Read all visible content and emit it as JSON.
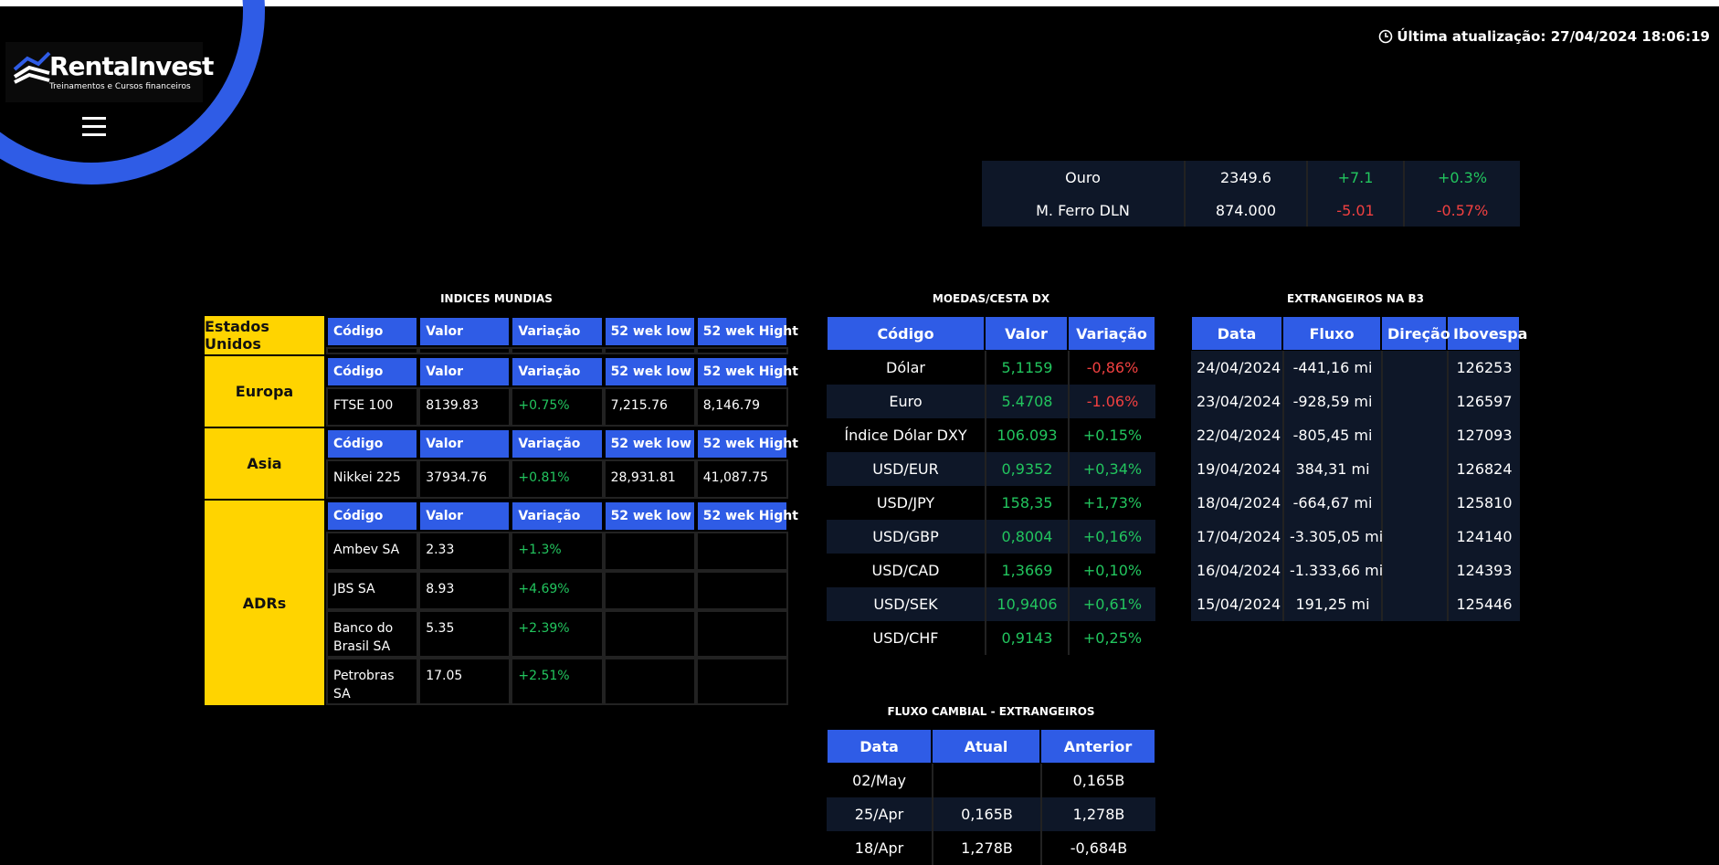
{
  "header": {
    "logo_title": "RentaInvest",
    "logo_subtitle": "Treinamentos e Cursos financeiros",
    "last_update": "Última atualização: 27/04/2024 18:06:19"
  },
  "commodities": {
    "rows": [
      [
        "Ouro",
        "2349.6",
        "+7.1",
        "+0.3%"
      ],
      [
        "M. Ferro DLN",
        "874.000",
        "-5.01",
        "-0.57%"
      ]
    ]
  },
  "indices": {
    "title": "INDICES MUNDIAS",
    "groups": [
      {
        "name": "Estados Unidos",
        "columns": [
          "Código",
          "Valor",
          "Variação",
          "52 wek low",
          "52 wek Hight"
        ],
        "rows": []
      },
      {
        "name": "Europa",
        "columns": [
          "Código",
          "Valor",
          "Variação",
          "52 wek low",
          "52 wek Hight"
        ],
        "rows": [
          [
            "FTSE 100",
            "8139.83",
            "+0.75%",
            "7,215.76",
            "8,146.79"
          ]
        ]
      },
      {
        "name": "Asia",
        "columns": [
          "Código",
          "Valor",
          "Variação",
          "52 wek low",
          "52 wek Hight"
        ],
        "rows": [
          [
            "Nikkei 225",
            "37934.76",
            "+0.81%",
            "28,931.81",
            "41,087.75"
          ]
        ]
      },
      {
        "name": "ADRs",
        "columns": [
          "Código",
          "Valor",
          "Variação",
          "52 wek low",
          "52 wek Hight"
        ],
        "rows": [
          [
            "Ambev SA",
            "2.33",
            "+1.3%",
            null,
            null
          ],
          [
            "JBS SA",
            "8.93",
            "+4.69%",
            null,
            null
          ],
          [
            "Banco do Brasil SA",
            "5.35",
            "+2.39%",
            null,
            null
          ],
          [
            "Petrobras SA",
            "17.05",
            "+2.51%",
            null,
            null
          ]
        ]
      }
    ]
  },
  "moedas": {
    "title": "MOEDAS/CESTA DX",
    "columns": [
      "Código",
      "Valor",
      "Variação"
    ],
    "rows": [
      [
        "Dólar",
        "5,1159",
        "-0,86%"
      ],
      [
        "Euro",
        "5.4708",
        "-1.06%"
      ],
      [
        "Índice Dólar DXY",
        "106.093",
        "+0.15%"
      ],
      [
        "USD/EUR",
        "0,9352",
        "+0,34%"
      ],
      [
        "USD/JPY",
        "158,35",
        "+1,73%"
      ],
      [
        "USD/GBP",
        "0,8004",
        "+0,16%"
      ],
      [
        "USD/CAD",
        "1,3669",
        "+0,10%"
      ],
      [
        "USD/SEK",
        "10,9406",
        "+0,61%"
      ],
      [
        "USD/CHF",
        "0,9143",
        "+0,25%"
      ]
    ]
  },
  "estrangeiros": {
    "title": "EXTRANGEIROS NA B3",
    "columns": [
      "Data",
      "Fluxo",
      "Direção",
      "Ibovespa"
    ],
    "rows": [
      [
        "24/04/2024",
        "-441,16 mi",
        null,
        "126253"
      ],
      [
        "23/04/2024",
        "-928,59 mi",
        null,
        "126597"
      ],
      [
        "22/04/2024",
        "-805,45 mi",
        null,
        "127093"
      ],
      [
        "19/04/2024",
        "384,31 mi",
        null,
        "126824"
      ],
      [
        "18/04/2024",
        "-664,67 mi",
        null,
        "125810"
      ],
      [
        "17/04/2024",
        "-3.305,05 mi",
        null,
        "124140"
      ],
      [
        "16/04/2024",
        "-1.333,66 mi",
        null,
        "124393"
      ],
      [
        "15/04/2024",
        "191,25 mi",
        null,
        "125446"
      ]
    ]
  },
  "fluxo_cambial": {
    "title": "FLUXO CAMBIAL - EXTRANGEIROS",
    "columns": [
      "Data",
      "Atual",
      "Anterior"
    ],
    "rows": [
      [
        "02/May",
        null,
        "0,165B"
      ],
      [
        "25/Apr",
        "0,165B",
        "1,278B"
      ],
      [
        "18/Apr",
        "1,278B",
        "-0,684B"
      ]
    ]
  }
}
